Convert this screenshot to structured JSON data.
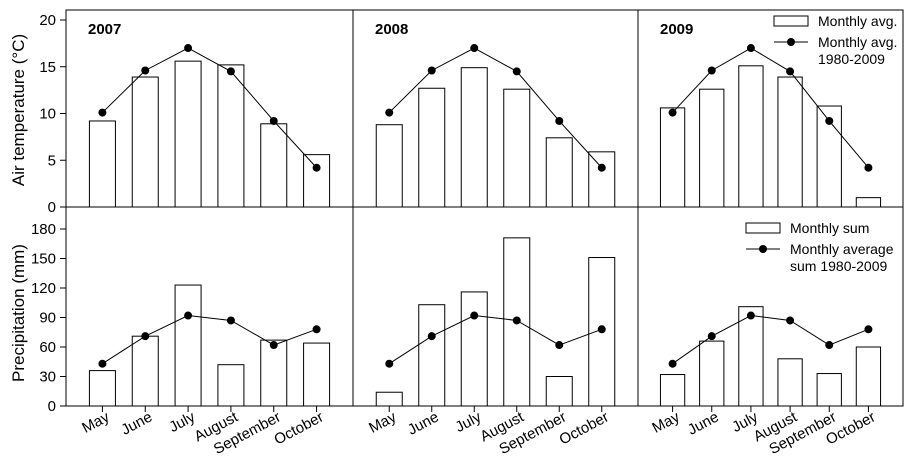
{
  "chart_data": {
    "type": "bar",
    "categories": [
      "May",
      "June",
      "July",
      "August",
      "September",
      "October"
    ],
    "years": [
      "2007",
      "2008",
      "2009"
    ],
    "temperature": {
      "ylabel": "Air temperature (°C)",
      "ylim": [
        0,
        20
      ],
      "yticks": [
        0,
        5,
        10,
        15,
        20
      ],
      "long_term_avg": [
        10.1,
        14.6,
        17.0,
        14.5,
        9.2,
        4.2
      ],
      "bars": {
        "2007": [
          9.2,
          13.9,
          15.6,
          15.2,
          8.9,
          5.6
        ],
        "2008": [
          8.8,
          12.7,
          14.9,
          12.6,
          7.4,
          5.9
        ],
        "2009": [
          10.6,
          12.6,
          15.1,
          13.9,
          10.8,
          1.0
        ]
      },
      "legend": {
        "bar_label": "Monthly avg.",
        "line_label_1": "Monthly avg.",
        "line_label_2": "1980-2009"
      }
    },
    "precipitation": {
      "ylabel": "Precipitation (mm)",
      "ylim": [
        0,
        180
      ],
      "yticks": [
        0,
        30,
        60,
        90,
        120,
        150,
        180
      ],
      "long_term_avg": [
        43,
        71,
        92,
        87,
        62,
        78
      ],
      "bars": {
        "2007": [
          36,
          71,
          123,
          42,
          67,
          64
        ],
        "2008": [
          14,
          103,
          116,
          171,
          30,
          151
        ],
        "2009": [
          32,
          66,
          101,
          48,
          33,
          60
        ]
      },
      "legend": {
        "bar_label": "Monthly sum",
        "line_label_1": "Monthly average",
        "line_label_2": "sum 1980-2009"
      }
    },
    "grid": false,
    "legend_position": "top-right"
  }
}
